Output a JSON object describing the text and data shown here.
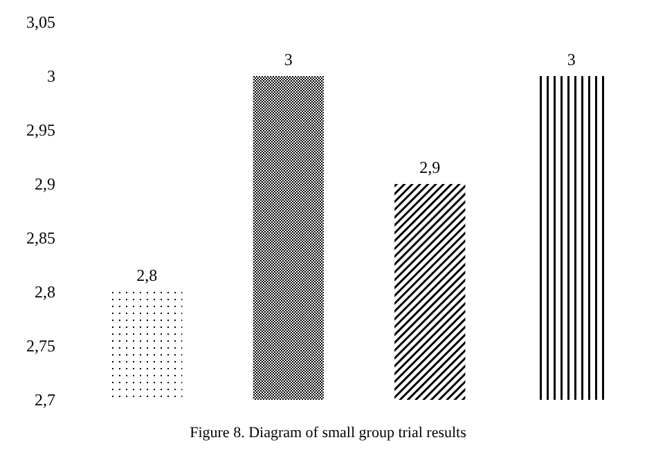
{
  "chart_data": {
    "type": "bar",
    "categories": [
      null,
      null,
      null,
      null
    ],
    "values": [
      2.8,
      3,
      2.9,
      3
    ],
    "value_labels": [
      "2,8",
      "3",
      "2,9",
      "3"
    ],
    "colors": [
      "#000000",
      "#000000",
      "#000000",
      "#000000"
    ],
    "ylim": [
      2.7,
      3.05
    ],
    "yticks": [
      {
        "value": 2.7,
        "label": "2,7"
      },
      {
        "value": 2.75,
        "label": "2,75"
      },
      {
        "value": 2.8,
        "label": "2,8"
      },
      {
        "value": 2.85,
        "label": "2,85"
      },
      {
        "value": 2.9,
        "label": "2,9"
      },
      {
        "value": 2.95,
        "label": "2,95"
      },
      {
        "value": 3,
        "label": "3"
      },
      {
        "value": 3.05,
        "label": "3,05"
      }
    ],
    "grid": false,
    "annotations": [
      "Figure 8. Diagram of small group trial results"
    ]
  }
}
